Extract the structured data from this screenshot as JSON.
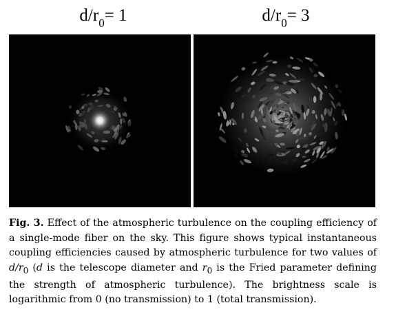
{
  "panels": [
    {
      "label_main": "d/r",
      "label_sub": "0",
      "label_value": "= 1"
    },
    {
      "label_main": "d/r",
      "label_sub": "0",
      "label_value": "= 3"
    }
  ],
  "caption": {
    "fig_label": "Fig. 3.",
    "part1": " Effect of the atmospheric turbulence on the coupling efficiency of a single-mode fiber on the sky. This figure shows typical instantaneous coupling efficiencies caused by atmospheric turbulence for two values of ",
    "math1": "d/r",
    "math1_sub": "0",
    "part2": " (",
    "math2": "d",
    "part3": " is the telescope diameter and ",
    "math3": "r",
    "math3_sub": "0",
    "part4": " is the Fried parameter defining the strength of atmospheric turbulence). The brightness scale is logarithmic from 0 (no transmission) to 1 (total transmission)."
  }
}
